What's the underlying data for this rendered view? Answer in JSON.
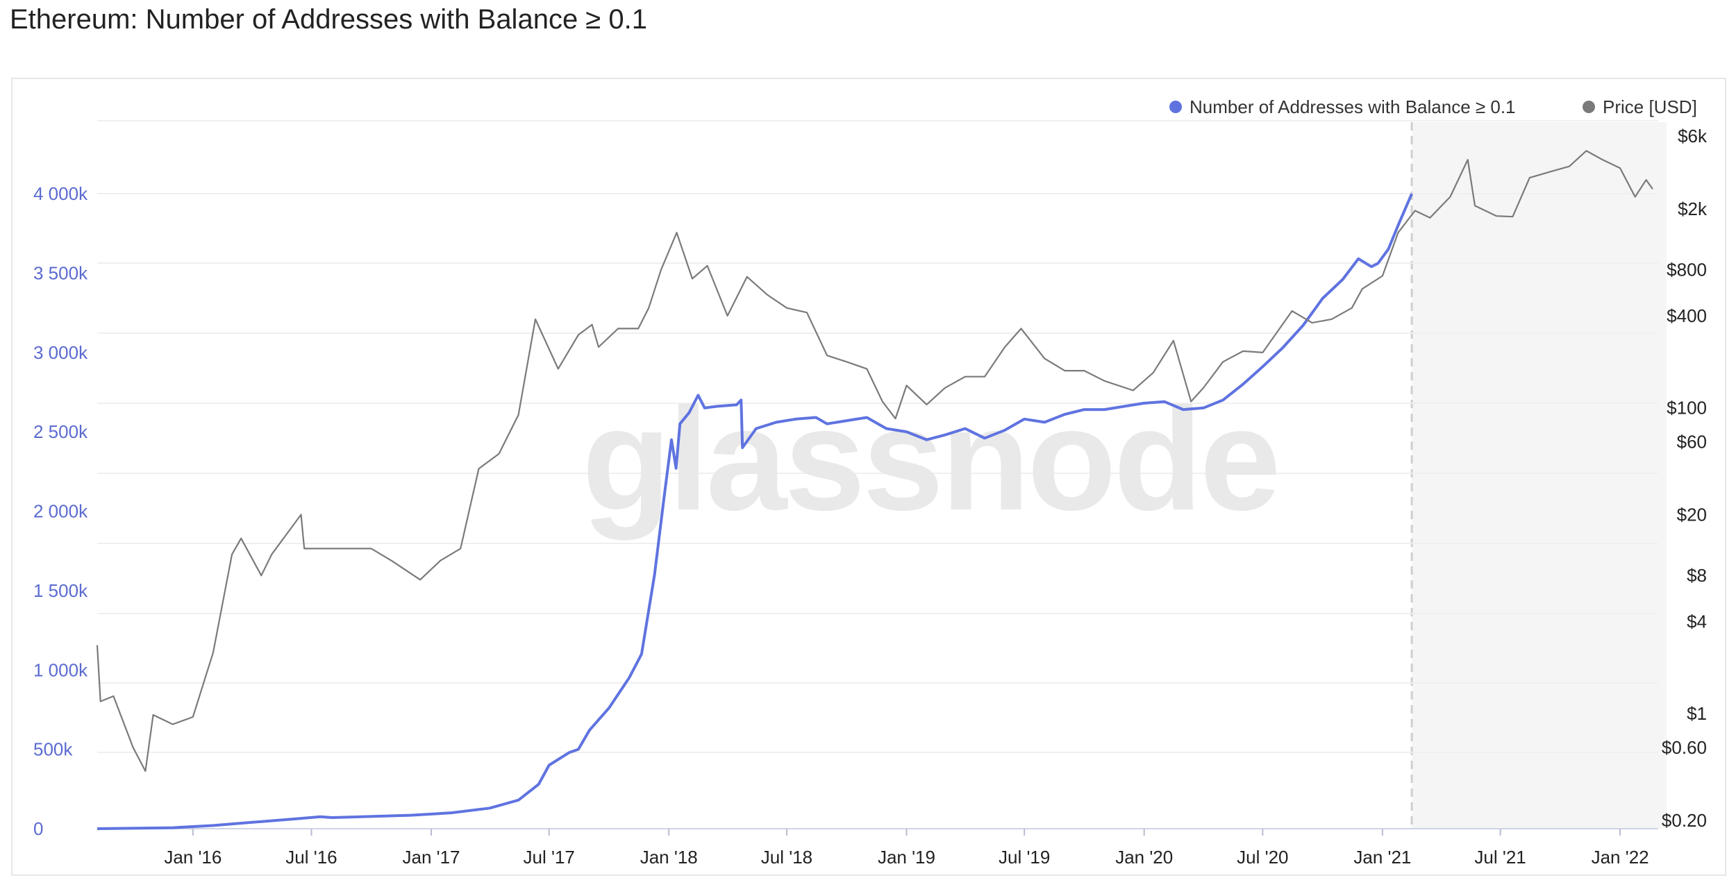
{
  "page": {
    "title": "Ethereum: Number of Addresses with Balance ≥ 0.1"
  },
  "watermark": "glassnode",
  "colors": {
    "addresses": "#5f73e0",
    "price": "#7a7a7a",
    "grid": "#efefef",
    "shade": "#f5f5f5",
    "divider": "#cfcfcf"
  },
  "chart_data": {
    "type": "line",
    "title": "Ethereum: Number of Addresses with Balance ≥ 0.1",
    "legend": {
      "placement": "top-right",
      "entries": [
        {
          "label": "Number of Addresses with Balance ≥ 0.1",
          "color": "#5f73e0"
        },
        {
          "label": "Price [USD]",
          "color": "#7a7a7a"
        }
      ]
    },
    "x_range": [
      "2015-08-07",
      "2022-02-20"
    ],
    "x_ticks": [
      {
        "date": "2016-01-01",
        "label": "Jan '16"
      },
      {
        "date": "2016-07-01",
        "label": "Jul '16"
      },
      {
        "date": "2017-01-01",
        "label": "Jan '17"
      },
      {
        "date": "2017-07-01",
        "label": "Jul '17"
      },
      {
        "date": "2018-01-01",
        "label": "Jan '18"
      },
      {
        "date": "2018-07-01",
        "label": "Jul '18"
      },
      {
        "date": "2019-01-01",
        "label": "Jan '19"
      },
      {
        "date": "2019-07-01",
        "label": "Jul '19"
      },
      {
        "date": "2020-01-01",
        "label": "Jan '20"
      },
      {
        "date": "2020-07-01",
        "label": "Jul '20"
      },
      {
        "date": "2021-01-01",
        "label": "Jan '21"
      },
      {
        "date": "2021-07-01",
        "label": "Jul '21"
      },
      {
        "date": "2022-01-01",
        "label": "Jan '22"
      }
    ],
    "y_left": {
      "min": 0,
      "max": 4000000,
      "ticks": [
        {
          "value": 0,
          "label": "0"
        },
        {
          "value": 500000,
          "label": "500k"
        },
        {
          "value": 1000000,
          "label": "1 000k"
        },
        {
          "value": 1500000,
          "label": "1 500k"
        },
        {
          "value": 2000000,
          "label": "2 000k"
        },
        {
          "value": 2500000,
          "label": "2 500k"
        },
        {
          "value": 3000000,
          "label": "3 000k"
        },
        {
          "value": 3500000,
          "label": "3 500k"
        },
        {
          "value": 4000000,
          "label": "4 000k"
        }
      ]
    },
    "y_right": {
      "scale": "log",
      "min": 0.2,
      "max": 6000,
      "ticks": [
        {
          "value": 6000,
          "label": "$6k"
        },
        {
          "value": 2000,
          "label": "$2k"
        },
        {
          "value": 800,
          "label": "$800"
        },
        {
          "value": 400,
          "label": "$400"
        },
        {
          "value": 100,
          "label": "$100"
        },
        {
          "value": 60,
          "label": "$60"
        },
        {
          "value": 20,
          "label": "$20"
        },
        {
          "value": 8,
          "label": "$8"
        },
        {
          "value": 4,
          "label": "$4"
        },
        {
          "value": 1,
          "label": "$1"
        },
        {
          "value": 0.6,
          "label": "$0.60"
        },
        {
          "value": 0.2,
          "label": "$0.20"
        }
      ]
    },
    "shaded_region": {
      "start": "2021-02-15",
      "end": "2022-02-20"
    },
    "series": [
      {
        "name": "Number of Addresses with Balance ≥ 0.1",
        "axis": "left",
        "points": [
          [
            "2015-08-07",
            0
          ],
          [
            "2015-12-01",
            6000
          ],
          [
            "2016-02-01",
            20000
          ],
          [
            "2016-04-01",
            40000
          ],
          [
            "2016-06-01",
            60000
          ],
          [
            "2016-07-15",
            75000
          ],
          [
            "2016-08-01",
            70000
          ],
          [
            "2016-12-01",
            85000
          ],
          [
            "2017-02-01",
            100000
          ],
          [
            "2017-04-01",
            130000
          ],
          [
            "2017-05-15",
            180000
          ],
          [
            "2017-06-15",
            280000
          ],
          [
            "2017-07-01",
            400000
          ],
          [
            "2017-08-01",
            480000
          ],
          [
            "2017-08-15",
            500000
          ],
          [
            "2017-09-01",
            620000
          ],
          [
            "2017-10-01",
            760000
          ],
          [
            "2017-11-01",
            950000
          ],
          [
            "2017-11-20",
            1100000
          ],
          [
            "2017-12-10",
            1600000
          ],
          [
            "2017-12-25",
            2100000
          ],
          [
            "2018-01-05",
            2450000
          ],
          [
            "2018-01-12",
            2270000
          ],
          [
            "2018-01-18",
            2550000
          ],
          [
            "2018-02-01",
            2620000
          ],
          [
            "2018-02-15",
            2730000
          ],
          [
            "2018-02-25",
            2650000
          ],
          [
            "2018-03-15",
            2660000
          ],
          [
            "2018-04-15",
            2670000
          ],
          [
            "2018-04-22",
            2700000
          ],
          [
            "2018-04-24",
            2400000
          ],
          [
            "2018-05-15",
            2520000
          ],
          [
            "2018-06-15",
            2560000
          ],
          [
            "2018-07-15",
            2580000
          ],
          [
            "2018-08-15",
            2590000
          ],
          [
            "2018-09-01",
            2550000
          ],
          [
            "2018-10-01",
            2570000
          ],
          [
            "2018-11-01",
            2590000
          ],
          [
            "2018-12-01",
            2520000
          ],
          [
            "2019-01-01",
            2500000
          ],
          [
            "2019-02-01",
            2450000
          ],
          [
            "2019-03-01",
            2480000
          ],
          [
            "2019-04-01",
            2520000
          ],
          [
            "2019-05-01",
            2460000
          ],
          [
            "2019-06-01",
            2510000
          ],
          [
            "2019-07-01",
            2580000
          ],
          [
            "2019-08-01",
            2560000
          ],
          [
            "2019-09-01",
            2610000
          ],
          [
            "2019-10-01",
            2640000
          ],
          [
            "2019-11-01",
            2640000
          ],
          [
            "2019-12-01",
            2660000
          ],
          [
            "2020-01-01",
            2680000
          ],
          [
            "2020-02-01",
            2690000
          ],
          [
            "2020-03-01",
            2640000
          ],
          [
            "2020-04-01",
            2650000
          ],
          [
            "2020-05-01",
            2700000
          ],
          [
            "2020-06-01",
            2800000
          ],
          [
            "2020-07-01",
            2910000
          ],
          [
            "2020-08-01",
            3030000
          ],
          [
            "2020-09-01",
            3170000
          ],
          [
            "2020-10-01",
            3340000
          ],
          [
            "2020-11-01",
            3460000
          ],
          [
            "2020-11-25",
            3590000
          ],
          [
            "2020-12-15",
            3540000
          ],
          [
            "2020-12-25",
            3560000
          ],
          [
            "2021-01-10",
            3650000
          ],
          [
            "2021-01-25",
            3800000
          ],
          [
            "2021-02-15",
            4000000
          ]
        ]
      },
      {
        "name": "Price [USD]",
        "axis": "right",
        "points": [
          [
            "2015-08-07",
            2.8
          ],
          [
            "2015-08-12",
            1.2
          ],
          [
            "2015-09-01",
            1.3
          ],
          [
            "2015-10-01",
            0.6
          ],
          [
            "2015-10-20",
            0.42
          ],
          [
            "2015-11-01",
            0.98
          ],
          [
            "2015-12-01",
            0.85
          ],
          [
            "2016-01-01",
            0.95
          ],
          [
            "2016-02-01",
            2.5
          ],
          [
            "2016-03-01",
            11
          ],
          [
            "2016-03-15",
            14
          ],
          [
            "2016-04-15",
            8
          ],
          [
            "2016-05-01",
            11
          ],
          [
            "2016-06-15",
            20
          ],
          [
            "2016-06-20",
            12
          ],
          [
            "2016-07-15",
            12
          ],
          [
            "2016-09-01",
            12
          ],
          [
            "2016-10-01",
            12
          ],
          [
            "2016-11-01",
            10
          ],
          [
            "2016-12-15",
            7.5
          ],
          [
            "2017-01-15",
            10
          ],
          [
            "2017-02-15",
            12
          ],
          [
            "2017-03-15",
            40
          ],
          [
            "2017-04-15",
            50
          ],
          [
            "2017-05-15",
            90
          ],
          [
            "2017-06-10",
            380
          ],
          [
            "2017-07-15",
            180
          ],
          [
            "2017-08-15",
            300
          ],
          [
            "2017-09-05",
            350
          ],
          [
            "2017-09-15",
            250
          ],
          [
            "2017-10-15",
            330
          ],
          [
            "2017-11-15",
            330
          ],
          [
            "2017-12-01",
            450
          ],
          [
            "2017-12-20",
            800
          ],
          [
            "2018-01-13",
            1400
          ],
          [
            "2018-02-06",
            700
          ],
          [
            "2018-03-01",
            850
          ],
          [
            "2018-04-01",
            400
          ],
          [
            "2018-05-01",
            720
          ],
          [
            "2018-06-01",
            550
          ],
          [
            "2018-07-01",
            450
          ],
          [
            "2018-08-01",
            420
          ],
          [
            "2018-09-01",
            220
          ],
          [
            "2018-10-01",
            200
          ],
          [
            "2018-11-01",
            180
          ],
          [
            "2018-11-25",
            110
          ],
          [
            "2018-12-15",
            85
          ],
          [
            "2019-01-01",
            140
          ],
          [
            "2019-02-01",
            105
          ],
          [
            "2019-03-01",
            135
          ],
          [
            "2019-04-01",
            160
          ],
          [
            "2019-05-01",
            160
          ],
          [
            "2019-06-01",
            250
          ],
          [
            "2019-06-26",
            330
          ],
          [
            "2019-08-01",
            210
          ],
          [
            "2019-09-01",
            175
          ],
          [
            "2019-10-01",
            175
          ],
          [
            "2019-11-01",
            150
          ],
          [
            "2019-12-15",
            130
          ],
          [
            "2020-01-15",
            170
          ],
          [
            "2020-02-15",
            275
          ],
          [
            "2020-03-13",
            110
          ],
          [
            "2020-04-01",
            135
          ],
          [
            "2020-05-01",
            200
          ],
          [
            "2020-06-01",
            235
          ],
          [
            "2020-07-01",
            230
          ],
          [
            "2020-08-15",
            430
          ],
          [
            "2020-09-15",
            360
          ],
          [
            "2020-10-15",
            380
          ],
          [
            "2020-11-15",
            450
          ],
          [
            "2020-12-01",
            600
          ],
          [
            "2021-01-01",
            730
          ],
          [
            "2021-01-25",
            1400
          ],
          [
            "2021-02-20",
            1950
          ],
          [
            "2021-03-15",
            1750
          ],
          [
            "2021-04-15",
            2400
          ],
          [
            "2021-05-12",
            4200
          ],
          [
            "2021-05-23",
            2100
          ],
          [
            "2021-06-25",
            1800
          ],
          [
            "2021-07-20",
            1780
          ],
          [
            "2021-08-15",
            3200
          ],
          [
            "2021-09-15",
            3500
          ],
          [
            "2021-10-15",
            3800
          ],
          [
            "2021-11-10",
            4800
          ],
          [
            "2021-12-05",
            4200
          ],
          [
            "2022-01-01",
            3700
          ],
          [
            "2022-01-24",
            2400
          ],
          [
            "2022-02-10",
            3100
          ],
          [
            "2022-02-20",
            2700
          ]
        ]
      }
    ]
  }
}
